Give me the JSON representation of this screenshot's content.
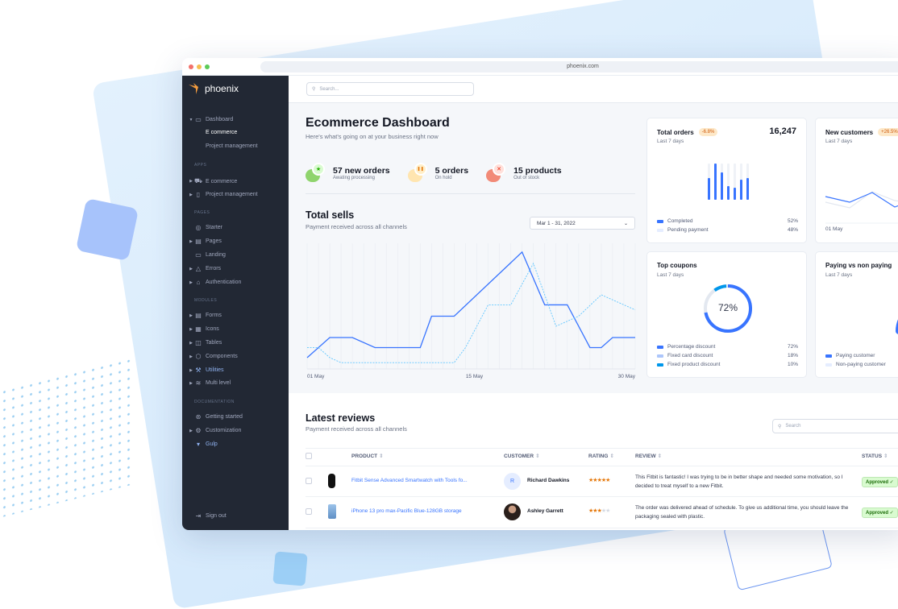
{
  "browser": {
    "url": "phoenix.com",
    "dots": [
      "#f3716b",
      "#f6be4f",
      "#5ccb58"
    ]
  },
  "brand": {
    "name": "phoenix",
    "accent": "#f29b3e"
  },
  "topbar": {
    "search_placeholder": "Search..."
  },
  "sidebar": [
    {
      "type": "item",
      "label": "Dashboard",
      "icon": "monitor-icon",
      "caret": "down"
    },
    {
      "type": "sub",
      "label": "E commerce",
      "active": true
    },
    {
      "type": "sub",
      "label": "Project management"
    },
    {
      "type": "section",
      "label": "APPS"
    },
    {
      "type": "item",
      "label": "E commerce",
      "icon": "cart-icon",
      "caret": "right"
    },
    {
      "type": "item",
      "label": "Project management",
      "icon": "clipboard-icon",
      "caret": "right"
    },
    {
      "type": "section",
      "label": "PAGES"
    },
    {
      "type": "item",
      "label": "Starter",
      "icon": "compass-icon"
    },
    {
      "type": "item",
      "label": "Pages",
      "icon": "layout-icon",
      "caret": "right"
    },
    {
      "type": "item",
      "label": "Landing",
      "icon": "desktop-icon"
    },
    {
      "type": "item",
      "label": "Errors",
      "icon": "alert-triangle-icon",
      "caret": "right"
    },
    {
      "type": "item",
      "label": "Authentication",
      "icon": "lock-icon",
      "caret": "right"
    },
    {
      "type": "section",
      "label": "MODULES"
    },
    {
      "type": "item",
      "label": "Forms",
      "icon": "file-text-icon",
      "caret": "right"
    },
    {
      "type": "item",
      "label": "Icons",
      "icon": "grid-icon",
      "caret": "right"
    },
    {
      "type": "item",
      "label": "Tables",
      "icon": "columns-icon",
      "caret": "right"
    },
    {
      "type": "item",
      "label": "Components",
      "icon": "package-icon",
      "caret": "right"
    },
    {
      "type": "item",
      "label": "Utilities",
      "icon": "tool-icon",
      "caret": "right",
      "highlight": true
    },
    {
      "type": "item",
      "label": "Multi level",
      "icon": "layers-icon",
      "caret": "right"
    },
    {
      "type": "section",
      "label": "DOCUMENTATION"
    },
    {
      "type": "item",
      "label": "Getting started",
      "icon": "life-buoy-icon"
    },
    {
      "type": "item",
      "label": "Customization",
      "icon": "settings-icon",
      "caret": "right"
    },
    {
      "type": "item",
      "label": "Gulp",
      "icon": "gulp-icon",
      "highlight": true
    }
  ],
  "signout": "Sign out",
  "header": {
    "title": "Ecommerce Dashboard",
    "subtitle": "Here's what's going on at your business right now"
  },
  "stats": [
    {
      "value": "57 new orders",
      "label": "Awating processing",
      "icon": "star-icon",
      "color": "#25b003",
      "bg": "#8fd46d",
      "light": "#d9fbd0"
    },
    {
      "value": "5 orders",
      "label": "On hold",
      "icon": "pause-icon",
      "color": "#e5780b",
      "bg": "#ffe5b0",
      "light": "#ffefca"
    },
    {
      "value": "15 products",
      "label": "Out of stock",
      "icon": "x-icon",
      "color": "#ec1f00",
      "bg": "#f28a77",
      "light": "#ffe0db"
    }
  ],
  "total_sells": {
    "title": "Total sells",
    "subtitle": "Payment received across all channels",
    "date_range": "Mar 1 - 31, 2022"
  },
  "chart_data": {
    "type": "line",
    "title": "Total sells",
    "x_unit": "day of May",
    "xlim": [
      1,
      30
    ],
    "x_ticks": [
      "01 May",
      "15 May",
      "30 May"
    ],
    "grid": "vertical",
    "series": [
      {
        "style": "solid",
        "color": "#3874ff",
        "points": [
          [
            1,
            9
          ],
          [
            3,
            25
          ],
          [
            5,
            25
          ],
          [
            7,
            17
          ],
          [
            11,
            17
          ],
          [
            12,
            42
          ],
          [
            14,
            42
          ],
          [
            20,
            93
          ],
          [
            22,
            51
          ],
          [
            24,
            51
          ],
          [
            26,
            17
          ],
          [
            27,
            17
          ],
          [
            28,
            25
          ],
          [
            30,
            25
          ]
        ]
      },
      {
        "style": "dashed",
        "color": "#60c6ff",
        "points": [
          [
            1,
            17
          ],
          [
            2,
            17
          ],
          [
            3,
            9
          ],
          [
            4,
            5
          ],
          [
            14,
            5
          ],
          [
            15,
            17
          ],
          [
            17,
            51
          ],
          [
            19,
            51
          ],
          [
            21,
            84
          ],
          [
            23,
            34
          ],
          [
            25,
            42
          ],
          [
            27,
            59
          ],
          [
            30,
            47
          ]
        ]
      }
    ]
  },
  "cards": {
    "total_orders": {
      "title": "Total orders",
      "badge": "-6.8%",
      "value": "16,247",
      "period": "Last 7 days",
      "bars": [
        0.6,
        1.0,
        0.75,
        0.38,
        0.33,
        0.55,
        0.6
      ],
      "legend": [
        {
          "label": "Completed",
          "value": "52%",
          "color": "#3874ff"
        },
        {
          "label": "Pending payment",
          "value": "48%",
          "color": "#e5edff"
        }
      ]
    },
    "new_customers": {
      "title": "New customers",
      "badge": "+26.5%",
      "period": "Last 7 days",
      "x_label": "01 May"
    },
    "top_coupons": {
      "title": "Top coupons",
      "period": "Last 7 days",
      "center": "72%",
      "legend": [
        {
          "label": "Percentage discount",
          "value": "72%",
          "pct": 72,
          "color": "#3874ff"
        },
        {
          "label": "Fixed card discount",
          "value": "18%",
          "pct": 18,
          "color": "#adc6fb"
        },
        {
          "label": "Fixed product discount",
          "value": "10%",
          "pct": 10,
          "color": "#0097eb"
        }
      ]
    },
    "paying": {
      "title": "Paying vs non paying",
      "period": "Last 7 days",
      "legend": [
        {
          "label": "Paying customer",
          "color": "#3874ff"
        },
        {
          "label": "Non-paying customer",
          "color": "#e5edff"
        }
      ]
    }
  },
  "reviews": {
    "title": "Latest reviews",
    "subtitle": "Payment received across all channels",
    "search_placeholder": "Search",
    "columns": [
      "PRODUCT",
      "CUSTOMER",
      "RATING",
      "REVIEW",
      "STATUS"
    ],
    "rows": [
      {
        "product": "Fitbit Sense Advanced Smartwatch with Tools fo...",
        "customer": "Richard Dawkins",
        "initial": "R",
        "rating": 5,
        "review": "This Fitbit is fantastic! I was trying to be in better shape and needed some motivation, so I decided to treat myself to a new Fitbit.",
        "status": "Approved"
      },
      {
        "product": "iPhone 13 pro max-Pacific Blue-128GB storage",
        "customer": "Ashley Garrett",
        "initial": "",
        "rating": 3,
        "review": "The order was delivered ahead of schedule. To give us additional time, you should leave the packaging sealed with plastic.",
        "status": "Approved"
      }
    ]
  }
}
